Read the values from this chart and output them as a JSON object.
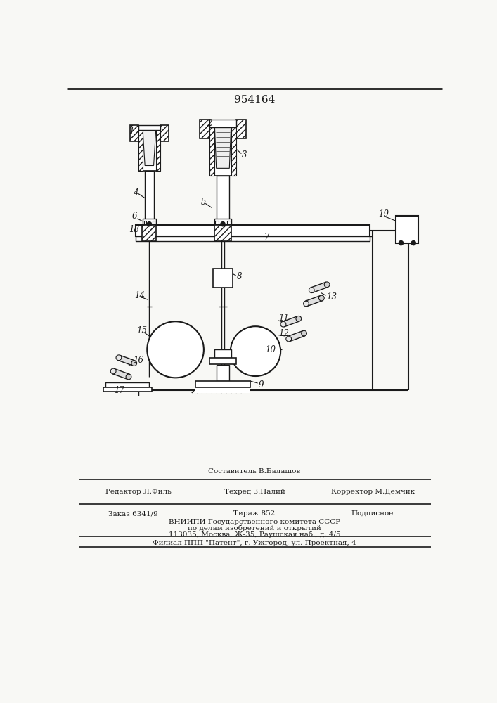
{
  "title": "954164",
  "title_fontsize": 11,
  "bg_color": "#f8f8f5",
  "line_color": "#1a1a1a",
  "footer_lines": [
    "Составитель В.Балашов",
    "Редактор Л.Филь",
    "Техред З.Палий",
    "Корректор М.Демчик",
    "Заказ 6341/9",
    "Тираж 852",
    "Подписное",
    "ВНИИПИ Государственного комитета СССР",
    "по делам изобретений и открытий",
    "113035, Москва, Ж-35, Раушская наб., д. 4/5",
    "Филиал ППП \"Патент\", г. Ужгород, ул. Проектная, 4"
  ]
}
